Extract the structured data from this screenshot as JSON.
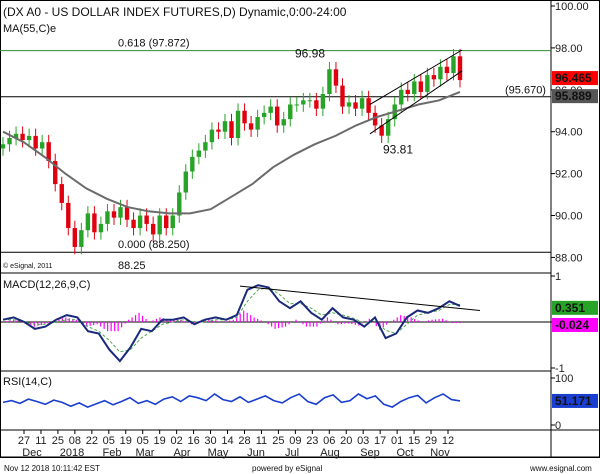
{
  "chart_data": [
    {
      "type": "candlestick",
      "title": "(DX A0 - US DOLLAR INDEX FUTURES,D) Dynamic,0:00-24:00",
      "series": [
        {
          "name": "MA(55,C)e"
        }
      ],
      "ylim": [
        87.4,
        100.0
      ],
      "y_ticks": [
        "100.00",
        "98.00",
        "96.00",
        "94.00",
        "92.00",
        "90.00",
        "88.00"
      ],
      "price_badges": [
        {
          "label": "96.465",
          "value": 96.465,
          "color": "#ff0000"
        },
        {
          "label": "95.889",
          "value": 95.889,
          "color": "#555555"
        }
      ],
      "annotations": [
        {
          "text": "0.618 (97.872)",
          "value": 97.872,
          "color": "#2e8b2e"
        },
        {
          "text": "(95.670)",
          "value": 95.67,
          "color": "#000000"
        },
        {
          "text": "96.98",
          "value": 96.98
        },
        {
          "text": "93.81",
          "value": 93.81
        },
        {
          "text": "0.000 (88.250)",
          "value": 88.25
        },
        {
          "text": "88.25",
          "value": 88.25
        }
      ],
      "copyright": "© eSignal, 2011",
      "close_path": [
        93.4,
        93.7,
        93.9,
        93.6,
        93.8,
        93.2,
        93.5,
        92.6,
        91.5,
        90.6,
        89.4,
        88.5,
        89.3,
        90.1,
        89.2,
        89.6,
        90.2,
        89.9,
        90.4,
        89.8,
        89.4,
        90.0,
        89.6,
        89.1,
        90.0,
        89.4,
        90.0,
        91.1,
        92.1,
        92.8,
        93.1,
        93.5,
        94.1,
        94.0,
        94.5,
        93.7,
        95.0,
        94.4,
        94.1,
        94.7,
        94.9,
        95.2,
        94.3,
        94.6,
        95.3,
        95.3,
        95.5,
        95.5,
        95.1,
        95.8,
        96.98,
        96.2,
        95.2,
        95.4,
        95.1,
        95.6,
        94.9,
        94.3,
        93.81,
        94.6,
        95.3,
        96.0,
        95.8,
        96.4,
        95.9,
        96.7,
        96.5,
        97.1,
        96.8,
        97.6,
        96.465
      ],
      "ma55_path": [
        94.0,
        93.5,
        92.8,
        92.0,
        91.3,
        90.8,
        90.4,
        90.2,
        90.1,
        90.1,
        90.3,
        90.9,
        91.5,
        92.3,
        92.9,
        93.4,
        93.8,
        94.3,
        94.7,
        95.0,
        95.3,
        95.5,
        95.9
      ],
      "channel": {
        "upper": [
          95.3,
          97.9
        ],
        "lower": [
          93.9,
          96.9
        ]
      }
    },
    {
      "type": "line",
      "title": "MACD(12,26,9,C)",
      "ylim": [
        -1.0,
        1.0
      ],
      "y_ticks": [
        "1",
        "0",
        "-1"
      ],
      "badges": [
        {
          "label": "0.351",
          "value": 0.351,
          "color": "#27a327"
        },
        {
          "label": "-0.024",
          "value": -0.024,
          "color": "#ff00ff"
        }
      ],
      "macd_path": [
        0.05,
        0.1,
        0.0,
        -0.15,
        -0.1,
        0.05,
        0.15,
        0.1,
        -0.2,
        -0.25,
        -0.6,
        -0.85,
        -0.55,
        -0.15,
        -0.2,
        0.05,
        0.05,
        0.1,
        -0.05,
        0.05,
        0.1,
        0.05,
        0.15,
        0.7,
        0.8,
        0.75,
        0.45,
        0.3,
        0.45,
        0.2,
        0.05,
        0.3,
        0.1,
        0.05,
        -0.1,
        0.1,
        -0.35,
        -0.25,
        0.1,
        0.25,
        0.2,
        0.3,
        0.45,
        0.35
      ],
      "signal_path": [
        0.05,
        0.05,
        0.0,
        -0.05,
        -0.05,
        0.0,
        0.05,
        0.05,
        -0.1,
        -0.2,
        -0.4,
        -0.65,
        -0.6,
        -0.35,
        -0.2,
        -0.05,
        0.0,
        0.05,
        0.0,
        0.0,
        0.05,
        0.05,
        0.1,
        0.45,
        0.7,
        0.75,
        0.6,
        0.4,
        0.4,
        0.3,
        0.15,
        0.2,
        0.15,
        0.08,
        -0.02,
        0.03,
        -0.18,
        -0.25,
        -0.05,
        0.15,
        0.2,
        0.25,
        0.38,
        0.38
      ],
      "histogram_path": [
        0.0,
        0.05,
        0.0,
        -0.1,
        -0.05,
        0.05,
        0.1,
        0.05,
        -0.1,
        -0.05,
        -0.2,
        -0.2,
        0.05,
        0.2,
        0.0,
        0.1,
        0.05,
        0.05,
        -0.05,
        0.05,
        0.05,
        0.0,
        0.05,
        0.25,
        0.1,
        0.0,
        -0.15,
        -0.1,
        0.05,
        -0.1,
        -0.1,
        0.1,
        -0.05,
        -0.03,
        -0.08,
        0.07,
        -0.17,
        0.0,
        0.15,
        0.1,
        0.0,
        0.05,
        0.07,
        -0.024
      ],
      "divergence_line": [
        0.78,
        0.38
      ]
    },
    {
      "type": "line",
      "title": "RSI(14,C)",
      "ylim": [
        0,
        100
      ],
      "y_ticks": [
        "100",
        "0"
      ],
      "badges": [
        {
          "label": "51.171",
          "value": 51.171,
          "color": "#1a3fd0"
        }
      ],
      "rsi_path": [
        48,
        52,
        46,
        55,
        50,
        44,
        53,
        48,
        40,
        47,
        38,
        45,
        52,
        43,
        50,
        58,
        46,
        52,
        44,
        55,
        60,
        50,
        62,
        58,
        52,
        66,
        54,
        50,
        60,
        48,
        55,
        62,
        52,
        47,
        58,
        66,
        50,
        44,
        58,
        64,
        48,
        52,
        66,
        56,
        62,
        44,
        38,
        50,
        58,
        63,
        47,
        58,
        66,
        54,
        51.171
      ]
    }
  ],
  "x_axis": {
    "day_labels": [
      "27",
      "11",
      "25",
      "08",
      "22",
      "05",
      "19",
      "05",
      "19",
      "02",
      "16",
      "30",
      "14",
      "28",
      "11",
      "25",
      "09",
      "23",
      "06",
      "20",
      "03",
      "17",
      "01",
      "15",
      "29",
      "12"
    ],
    "month_labels": [
      "Dec",
      "2018",
      "Feb",
      "Mar",
      "Apr",
      "May",
      "Jun",
      "Jul",
      "Aug",
      "Sep",
      "Oct",
      "Nov"
    ]
  },
  "footer": {
    "left": "Nov 12 2018 10:11:42 EST",
    "center": "powered by eSignal",
    "right": "www.esignal.com"
  },
  "colors": {
    "candle_up": "#27a327",
    "candle_down": "#e0000f",
    "ma": "#6b6b6b",
    "macd": "#1a2a7a",
    "signal": "#4da84d",
    "histogram": "#ff00ff",
    "rsi": "#1a3fd0",
    "fib": "#2e8b2e"
  }
}
